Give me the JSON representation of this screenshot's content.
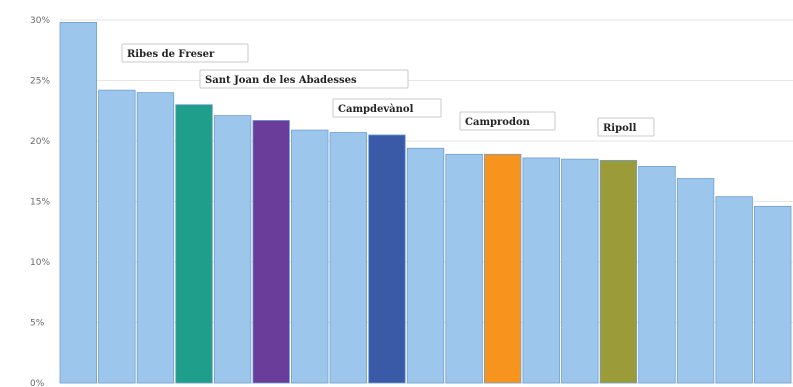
{
  "chart_data": {
    "type": "bar",
    "title": "",
    "xlabel": "",
    "ylabel": "",
    "ylim": [
      0,
      30
    ],
    "yticks": [
      "0%",
      "5%",
      "10%",
      "15%",
      "20%",
      "25%",
      "30%"
    ],
    "grid": true,
    "values": [
      29.8,
      24.2,
      24.0,
      23.0,
      22.1,
      21.7,
      20.9,
      20.7,
      20.5,
      19.4,
      18.9,
      18.9,
      18.6,
      18.5,
      18.4,
      17.9,
      16.9,
      15.4,
      14.6
    ],
    "colors": [
      "#9dc6ec",
      "#9dc6ec",
      "#9dc6ec",
      "#1f9e8c",
      "#9dc6ec",
      "#6a3d9a",
      "#9dc6ec",
      "#9dc6ec",
      "#3a5aa8",
      "#9dc6ec",
      "#9dc6ec",
      "#f7941d",
      "#9dc6ec",
      "#9dc6ec",
      "#9b9b3a",
      "#9dc6ec",
      "#9dc6ec",
      "#9dc6ec",
      "#9dc6ec"
    ],
    "annotations": [
      {
        "label": "Ribes de Freser",
        "bar_index": 3
      },
      {
        "label": "Sant Joan de les Abadesses",
        "bar_index": 5
      },
      {
        "label": "Campdevànol",
        "bar_index": 8
      },
      {
        "label": "Camprodon",
        "bar_index": 11
      },
      {
        "label": "Ripoll",
        "bar_index": 14
      }
    ]
  }
}
